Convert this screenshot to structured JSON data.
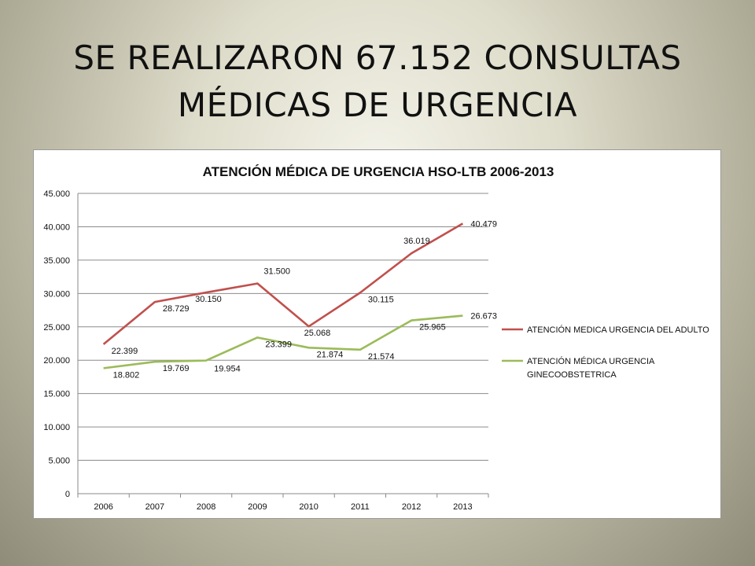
{
  "slide": {
    "title_line1": "SE REALIZARON 67.152 CONSULTAS",
    "title_line2": "MÉDICAS DE URGENCIA"
  },
  "chart_data": {
    "type": "line",
    "title": "ATENCIÓN MÉDICA DE URGENCIA HSO-LTB 2006-2013",
    "categories": [
      "2006",
      "2007",
      "2008",
      "2009",
      "2010",
      "2011",
      "2012",
      "2013"
    ],
    "ylim": [
      0,
      45000
    ],
    "yticks": [
      0,
      5000,
      10000,
      15000,
      20000,
      25000,
      30000,
      35000,
      40000,
      45000
    ],
    "ytick_labels": [
      "0",
      "5.000",
      "10.000",
      "15.000",
      "20.000",
      "25.000",
      "30.000",
      "35.000",
      "40.000",
      "45.000"
    ],
    "grid": true,
    "legend_position": "right",
    "series": [
      {
        "name": "ATENCIÓN MEDICA URGENCIA DEL ADULTO",
        "color": "#c0504d",
        "values": [
          22399,
          28729,
          30150,
          31500,
          25068,
          30115,
          36019,
          40479
        ],
        "labels": [
          "22.399",
          "28.729",
          "30.150",
          "31.500",
          "25.068",
          "30.115",
          "36.019",
          "40.479"
        ]
      },
      {
        "name": "ATENCIÓN MÉDICA URGENCIA GINECOOBSTETRICA",
        "name_lines": [
          "ATENCIÓN MÉDICA URGENCIA",
          "GINECOOBSTETRICA"
        ],
        "color": "#9bbb59",
        "values": [
          18802,
          19769,
          19954,
          23399,
          21874,
          21574,
          25965,
          26673
        ],
        "labels": [
          "18.802",
          "19.769",
          "19.954",
          "23.399",
          "21.874",
          "21.574",
          "25.965",
          "26.673"
        ]
      }
    ]
  }
}
